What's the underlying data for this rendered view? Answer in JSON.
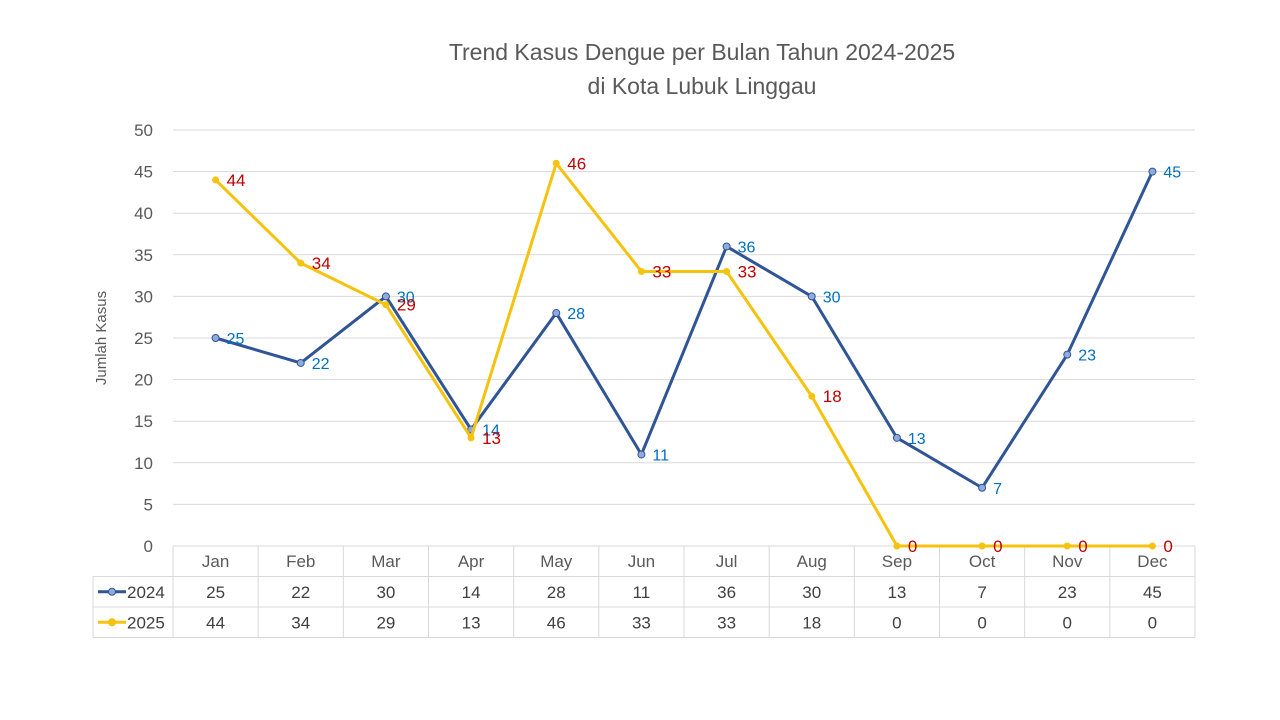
{
  "chart_data": {
    "type": "line",
    "title_line1": "Trend Kasus Dengue per Bulan Tahun 2024-2025",
    "title_line2": "di Kota Lubuk Linggau",
    "ylabel": "Jumlah Kasus",
    "xlabel": "",
    "ylim": [
      0,
      50
    ],
    "yticks": [
      0,
      5,
      10,
      15,
      20,
      25,
      30,
      35,
      40,
      45,
      50
    ],
    "grid": true,
    "legend": "data-table",
    "categories": [
      "Jan",
      "Feb",
      "Mar",
      "Apr",
      "May",
      "Jun",
      "Jul",
      "Aug",
      "Sep",
      "Oct",
      "Nov",
      "Dec"
    ],
    "series": [
      {
        "name": "2024",
        "color": "#2F5597",
        "label_color": "#0070C0",
        "values": [
          25,
          22,
          30,
          14,
          28,
          11,
          36,
          30,
          13,
          7,
          23,
          45
        ]
      },
      {
        "name": "2025",
        "color": "#F5C20D",
        "label_color": "#C00000",
        "values": [
          44,
          34,
          29,
          13,
          46,
          33,
          33,
          18,
          0,
          0,
          0,
          0
        ]
      }
    ]
  }
}
